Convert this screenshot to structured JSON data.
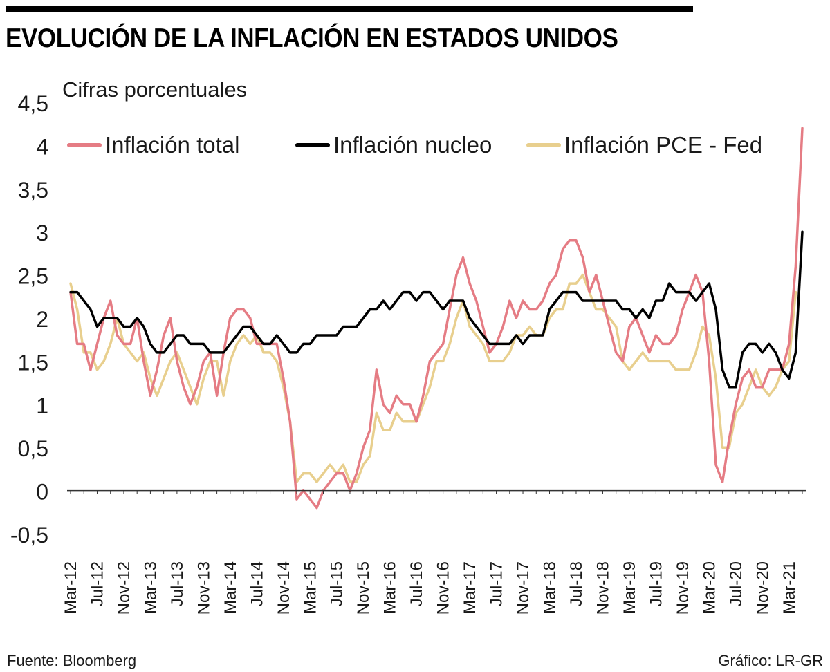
{
  "header": {
    "title": "EVOLUCIÓN DE LA INFLACIÓN EN ESTADOS UNIDOS"
  },
  "footer": {
    "source": "Fuente: Bloomberg",
    "credit": "Gráfico: LR-GR"
  },
  "chart_data": {
    "type": "line",
    "subtitle": "Cifras porcentuales",
    "ylim": [
      -0.5,
      4.5
    ],
    "yticks": [
      -0.5,
      0,
      0.5,
      1,
      1.5,
      2,
      2.5,
      3,
      3.5,
      4,
      4.5
    ],
    "ytick_labels": [
      "-0,5",
      "0",
      "0,5",
      "1",
      "1,5",
      "2",
      "2,5",
      "3",
      "3,5",
      "4",
      "4,5"
    ],
    "xtick_labels": [
      "Mar-12",
      "Jul-12",
      "Nov-12",
      "Mar-13",
      "Jul-13",
      "Nov-13",
      "Mar-14",
      "Jul-14",
      "Nov-14",
      "Mar-15",
      "Jul-15",
      "Nov-15",
      "Mar-16",
      "Jul-16",
      "Nov-16",
      "Mar-17",
      "Jul-17",
      "Nov-17",
      "Mar-18",
      "Jul-18",
      "Nov-18",
      "Mar-19",
      "Jul-19",
      "Nov-19",
      "Mar-20",
      "Jul-20",
      "Nov-20",
      "Mar-21"
    ],
    "x_frequency": "monthly",
    "x_start": "Mar-12",
    "x_end": "Apr-21",
    "series": [
      {
        "name": "Inflación total",
        "color": "#e57c84",
        "values": [
          2.3,
          1.7,
          1.7,
          1.4,
          1.7,
          2.0,
          2.2,
          1.8,
          1.7,
          1.7,
          2.0,
          1.5,
          1.1,
          1.4,
          1.8,
          2.0,
          1.5,
          1.2,
          1.0,
          1.2,
          1.5,
          1.6,
          1.1,
          1.6,
          2.0,
          2.1,
          2.1,
          2.0,
          1.7,
          1.7,
          1.7,
          1.7,
          1.3,
          0.8,
          -0.1,
          0.0,
          -0.1,
          -0.2,
          0.0,
          0.1,
          0.2,
          0.2,
          0.0,
          0.2,
          0.5,
          0.7,
          1.4,
          1.0,
          0.9,
          1.1,
          1.0,
          1.0,
          0.8,
          1.1,
          1.5,
          1.6,
          1.7,
          2.1,
          2.5,
          2.7,
          2.4,
          2.2,
          1.9,
          1.6,
          1.7,
          1.9,
          2.2,
          2.0,
          2.2,
          2.1,
          2.1,
          2.2,
          2.4,
          2.5,
          2.8,
          2.9,
          2.9,
          2.7,
          2.3,
          2.5,
          2.2,
          1.9,
          1.6,
          1.5,
          1.9,
          2.0,
          1.8,
          1.6,
          1.8,
          1.7,
          1.7,
          1.8,
          2.1,
          2.3,
          2.5,
          2.3,
          1.5,
          0.3,
          0.1,
          0.6,
          1.0,
          1.3,
          1.4,
          1.2,
          1.2,
          1.4,
          1.4,
          1.4,
          1.7,
          2.6,
          4.2
        ]
      },
      {
        "name": "Inflación nucleo",
        "color": "#000000",
        "values": [
          2.3,
          2.3,
          2.2,
          2.1,
          1.9,
          2.0,
          2.0,
          2.0,
          1.9,
          1.9,
          2.0,
          1.9,
          1.7,
          1.6,
          1.6,
          1.7,
          1.8,
          1.8,
          1.7,
          1.7,
          1.7,
          1.6,
          1.6,
          1.6,
          1.7,
          1.8,
          1.9,
          1.9,
          1.8,
          1.7,
          1.7,
          1.8,
          1.7,
          1.6,
          1.6,
          1.7,
          1.7,
          1.8,
          1.8,
          1.8,
          1.8,
          1.9,
          1.9,
          1.9,
          2.0,
          2.1,
          2.1,
          2.2,
          2.1,
          2.2,
          2.3,
          2.3,
          2.2,
          2.3,
          2.3,
          2.2,
          2.1,
          2.2,
          2.2,
          2.2,
          2.0,
          1.9,
          1.8,
          1.7,
          1.7,
          1.7,
          1.7,
          1.8,
          1.7,
          1.8,
          1.8,
          1.8,
          2.1,
          2.2,
          2.3,
          2.3,
          2.3,
          2.2,
          2.2,
          2.2,
          2.2,
          2.2,
          2.2,
          2.1,
          2.1,
          2.0,
          2.1,
          2.0,
          2.2,
          2.2,
          2.4,
          2.3,
          2.3,
          2.3,
          2.2,
          2.3,
          2.4,
          2.1,
          1.4,
          1.2,
          1.2,
          1.6,
          1.7,
          1.7,
          1.6,
          1.7,
          1.6,
          1.4,
          1.3,
          1.6,
          3.0
        ]
      },
      {
        "name": "Inflación PCE - Fed",
        "color": "#e8cf8e",
        "values": [
          2.4,
          2.1,
          1.6,
          1.6,
          1.4,
          1.5,
          1.7,
          2.0,
          1.7,
          1.6,
          1.5,
          1.6,
          1.3,
          1.1,
          1.3,
          1.5,
          1.6,
          1.4,
          1.2,
          1.0,
          1.3,
          1.5,
          1.5,
          1.1,
          1.5,
          1.7,
          1.8,
          1.7,
          1.8,
          1.6,
          1.6,
          1.5,
          1.2,
          0.8,
          0.1,
          0.2,
          0.2,
          0.1,
          0.2,
          0.3,
          0.2,
          0.3,
          0.1,
          0.1,
          0.3,
          0.4,
          0.9,
          0.7,
          0.7,
          0.9,
          0.8,
          0.8,
          0.8,
          1.0,
          1.2,
          1.5,
          1.5,
          1.7,
          2.0,
          2.2,
          1.9,
          1.8,
          1.7,
          1.5,
          1.5,
          1.5,
          1.6,
          1.8,
          1.8,
          1.9,
          1.8,
          1.8,
          2.0,
          2.1,
          2.1,
          2.4,
          2.4,
          2.5,
          2.3,
          2.1,
          2.1,
          2.0,
          1.9,
          1.5,
          1.4,
          1.5,
          1.6,
          1.5,
          1.5,
          1.5,
          1.5,
          1.4,
          1.4,
          1.4,
          1.6,
          1.9,
          1.8,
          1.3,
          0.5,
          0.5,
          0.9,
          1.0,
          1.2,
          1.4,
          1.2,
          1.1,
          1.2,
          1.4,
          1.5,
          2.3
        ]
      }
    ]
  }
}
